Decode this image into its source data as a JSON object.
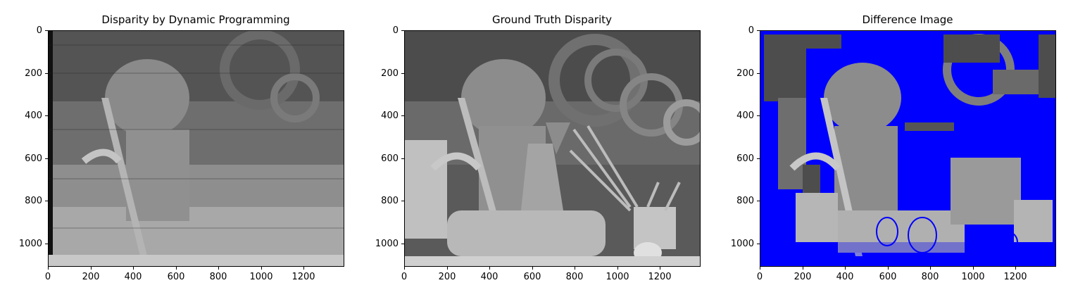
{
  "panels": [
    {
      "title": "Disparity by Dynamic Programming",
      "y_ticks": [
        "0",
        "200",
        "400",
        "600",
        "800",
        "1000"
      ],
      "x_ticks": [
        "0",
        "200",
        "400",
        "600",
        "800",
        "1000",
        "1200"
      ]
    },
    {
      "title": "Ground Truth Disparity",
      "y_ticks": [
        "0",
        "200",
        "400",
        "600",
        "800",
        "1000"
      ],
      "x_ticks": [
        "0",
        "200",
        "400",
        "600",
        "800",
        "1000",
        "1200"
      ]
    },
    {
      "title": "Difference Image",
      "y_ticks": [
        "0",
        "200",
        "400",
        "600",
        "800",
        "1000"
      ],
      "x_ticks": [
        "0",
        "200",
        "400",
        "600",
        "800",
        "1000",
        "1200"
      ]
    }
  ],
  "colors": {
    "mismatch": "#0000ff",
    "background": "#ffffff"
  }
}
